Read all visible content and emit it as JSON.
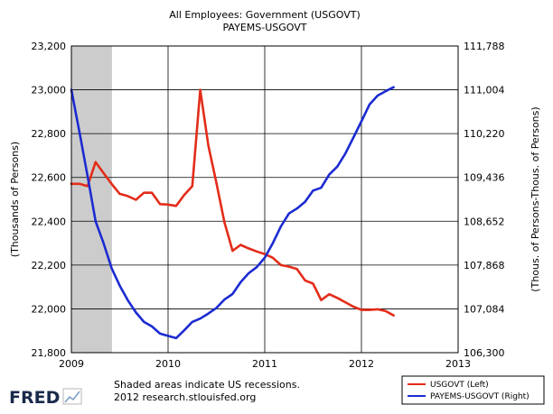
{
  "chart_data": {
    "type": "line",
    "title": "All Employees: Government (USGOVT)",
    "subtitle": "PAYEMS-USGOVT",
    "ylabel_left": "(Thousands of Persons)",
    "ylabel_right": "(Thous. of Persons-Thous. of Persons)",
    "xlim": [
      2009.0,
      2013.0
    ],
    "ylim_left": [
      21800,
      23200
    ],
    "ylim_right": [
      106300,
      111788
    ],
    "x_ticks": [
      "2009",
      "2010",
      "2011",
      "2012",
      "2013"
    ],
    "y_left_ticks": [
      "21,800",
      "22,000",
      "22,200",
      "22,400",
      "22,600",
      "22,800",
      "23,000",
      "23,200"
    ],
    "y_right_ticks": [
      "106,300",
      "107,084",
      "107,868",
      "108,652",
      "109,436",
      "110,220",
      "111,004",
      "111,788"
    ],
    "grid": true,
    "recession": {
      "start": 2009.0,
      "end": 2009.42,
      "color": "#cccccc"
    },
    "legend": {
      "position": "bottom-right",
      "entries": [
        "USGOVT (Left)",
        "PAYEMS-USGOVT (Right)"
      ]
    },
    "series": [
      {
        "name": "USGOVT (Left)",
        "axis": "left",
        "color": "#e32c1a",
        "x": [
          2009.0,
          2009.083,
          2009.167,
          2009.25,
          2009.333,
          2009.417,
          2009.5,
          2009.583,
          2009.667,
          2009.75,
          2009.833,
          2009.917,
          2010.0,
          2010.083,
          2010.167,
          2010.25,
          2010.333,
          2010.417,
          2010.5,
          2010.583,
          2010.667,
          2010.75,
          2010.833,
          2010.917,
          2011.0,
          2011.083,
          2011.167,
          2011.25,
          2011.333,
          2011.417,
          2011.5,
          2011.583,
          2011.667,
          2011.75,
          2011.833,
          2011.917,
          2012.0,
          2012.083,
          2012.167,
          2012.25,
          2012.333
        ],
        "values": [
          22571,
          22571,
          22560,
          22670,
          22620,
          22570,
          22525,
          22515,
          22498,
          22530,
          22530,
          22478,
          22476,
          22470,
          22520,
          22560,
          23000,
          22745,
          22575,
          22395,
          22265,
          22292,
          22276,
          22262,
          22250,
          22233,
          22200,
          22193,
          22182,
          22130,
          22115,
          22040,
          22067,
          22050,
          22030,
          22010,
          21995,
          21995,
          21998,
          21990,
          21970
        ]
      },
      {
        "name": "PAYEMS-USGOVT (Right)",
        "axis": "right",
        "color": "#1c2bd1",
        "x": [
          2009.0,
          2009.083,
          2009.167,
          2009.25,
          2009.333,
          2009.417,
          2009.5,
          2009.583,
          2009.667,
          2009.75,
          2009.833,
          2009.917,
          2010.0,
          2010.083,
          2010.167,
          2010.25,
          2010.333,
          2010.417,
          2010.5,
          2010.583,
          2010.667,
          2010.75,
          2010.833,
          2010.917,
          2011.0,
          2011.083,
          2011.167,
          2011.25,
          2011.333,
          2011.417,
          2011.5,
          2011.583,
          2011.667,
          2011.75,
          2011.833,
          2011.917,
          2012.0,
          2012.083,
          2012.167,
          2012.25,
          2012.333
        ],
        "values": [
          111004,
          110250,
          109460,
          108650,
          108260,
          107810,
          107500,
          107240,
          107020,
          106850,
          106770,
          106640,
          106600,
          106560,
          106700,
          106850,
          106910,
          107000,
          107100,
          107250,
          107350,
          107560,
          107720,
          107830,
          108000,
          108260,
          108560,
          108790,
          108880,
          109000,
          109200,
          109250,
          109490,
          109630,
          109860,
          110150,
          110440,
          110740,
          110900,
          110980,
          111050
        ]
      }
    ]
  },
  "footer": {
    "logo_text": "FRED",
    "note_line1": "Shaded areas indicate US recessions.",
    "note_line2": "2012 research.stlouisfed.org"
  }
}
